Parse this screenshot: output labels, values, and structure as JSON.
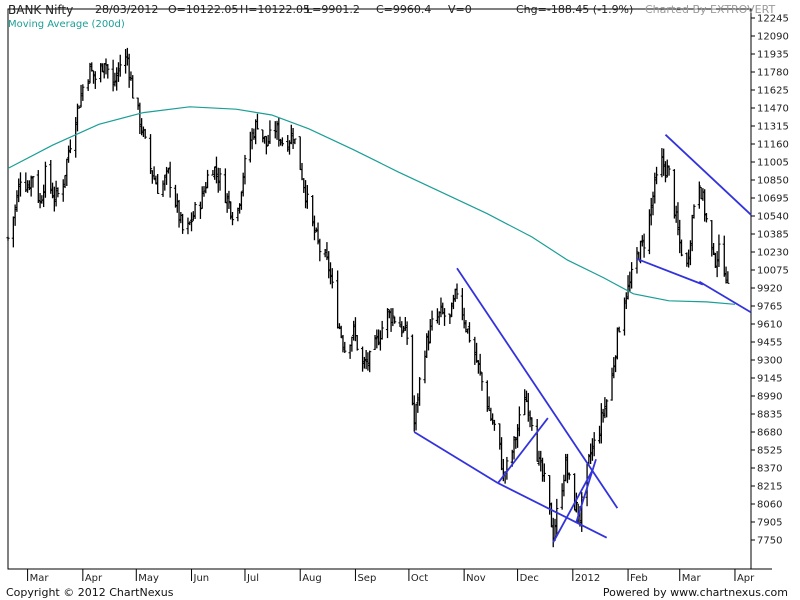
{
  "header": {
    "symbol": "BANK Nifty",
    "date": "28/03/2012",
    "open": "O=10122.05",
    "high": "H=10122.05",
    "low": "L=9901.2",
    "close": "C=9960.4",
    "volume": "V=0",
    "change": "Chg=-188.45 (-1.9%)",
    "charted_by": "Charted By EXTROVERT"
  },
  "ma_label": "Moving Average (200d)",
  "footer": {
    "copyright": "Copyright © 2012 ChartNexus",
    "powered": "Powered by www.chartnexus.com"
  },
  "colors": {
    "price": "#000000",
    "moving_average": "#1a9e96",
    "trendlines": "#3333dd",
    "axis": "#000000"
  },
  "chart_data": {
    "type": "ohlc-bar",
    "title": "BANK Nifty",
    "y_scale": "linear",
    "ylim": [
      7640,
      12330
    ],
    "y_ticks": [
      12245,
      12090,
      11935,
      11780,
      11625,
      11470,
      11315,
      11160,
      11005,
      10850,
      10695,
      10540,
      10385,
      10230,
      10075,
      9920,
      9765,
      9610,
      9455,
      9300,
      9145,
      8990,
      8835,
      8680,
      8525,
      8370,
      8215,
      8060,
      7905,
      7750
    ],
    "x_ticks": [
      "Mar",
      "Apr",
      "May",
      "Jun",
      "Jul",
      "Aug",
      "Sep",
      "Oct",
      "Nov",
      "Dec",
      "2012",
      "Feb",
      "Mar",
      "Apr"
    ],
    "x_tick_dates": [
      "2011-03-01",
      "2011-04-01",
      "2011-05-01",
      "2011-06-01",
      "2011-07-01",
      "2011-08-01",
      "2011-09-01",
      "2011-10-01",
      "2011-11-01",
      "2011-12-01",
      "2012-01-01",
      "2012-02-01",
      "2012-03-01",
      "2012-04-01"
    ],
    "x_range": [
      "2011-02-18",
      "2012-04-10"
    ],
    "grid": false,
    "price_path": [
      [
        "2011-02-18",
        10350
      ],
      [
        "2011-02-22",
        10600
      ],
      [
        "2011-02-25",
        10880
      ],
      [
        "2011-03-01",
        10800
      ],
      [
        "2011-03-04",
        10900
      ],
      [
        "2011-03-08",
        10650
      ],
      [
        "2011-03-11",
        10900
      ],
      [
        "2011-03-16",
        10700
      ],
      [
        "2011-03-20",
        10750
      ],
      [
        "2011-03-24",
        11100
      ],
      [
        "2011-03-28",
        11400
      ],
      [
        "2011-04-01",
        11650
      ],
      [
        "2011-04-05",
        11800
      ],
      [
        "2011-04-09",
        11700
      ],
      [
        "2011-04-13",
        11900
      ],
      [
        "2011-04-18",
        11650
      ],
      [
        "2011-04-22",
        11850
      ],
      [
        "2011-04-26",
        11900
      ],
      [
        "2011-04-29",
        11600
      ],
      [
        "2011-05-04",
        11300
      ],
      [
        "2011-05-09",
        10950
      ],
      [
        "2011-05-14",
        10750
      ],
      [
        "2011-05-19",
        10900
      ],
      [
        "2011-05-24",
        10600
      ],
      [
        "2011-05-28",
        10350
      ],
      [
        "2011-06-02",
        10550
      ],
      [
        "2011-06-07",
        10700
      ],
      [
        "2011-06-12",
        11000
      ],
      [
        "2011-06-17",
        10850
      ],
      [
        "2011-06-22",
        10650
      ],
      [
        "2011-06-26",
        10500
      ],
      [
        "2011-06-30",
        10900
      ],
      [
        "2011-07-04",
        11200
      ],
      [
        "2011-07-08",
        11350
      ],
      [
        "2011-07-13",
        11150
      ],
      [
        "2011-07-18",
        11300
      ],
      [
        "2011-07-23",
        11150
      ],
      [
        "2011-07-28",
        11250
      ],
      [
        "2011-08-02",
        10900
      ],
      [
        "2011-08-07",
        10500
      ],
      [
        "2011-08-12",
        10250
      ],
      [
        "2011-08-17",
        10100
      ],
      [
        "2011-08-22",
        9650
      ],
      [
        "2011-08-26",
        9400
      ],
      [
        "2011-08-31",
        9550
      ],
      [
        "2011-09-05",
        9250
      ],
      [
        "2011-09-09",
        9300
      ],
      [
        "2011-09-14",
        9500
      ],
      [
        "2011-09-19",
        9700
      ],
      [
        "2011-09-24",
        9650
      ],
      [
        "2011-09-30",
        9500
      ],
      [
        "2011-10-04",
        8750
      ],
      [
        "2011-10-09",
        9350
      ],
      [
        "2011-10-14",
        9600
      ],
      [
        "2011-10-19",
        9700
      ],
      [
        "2011-10-24",
        9650
      ],
      [
        "2011-10-28",
        9900
      ],
      [
        "2011-11-02",
        9600
      ],
      [
        "2011-11-07",
        9350
      ],
      [
        "2011-11-12",
        9050
      ],
      [
        "2011-11-16",
        8800
      ],
      [
        "2011-11-20",
        8650
      ],
      [
        "2011-11-23",
        8300
      ],
      [
        "2011-11-27",
        8450
      ],
      [
        "2011-12-01",
        8700
      ],
      [
        "2011-12-05",
        9000
      ],
      [
        "2011-12-09",
        8800
      ],
      [
        "2011-12-13",
        8400
      ],
      [
        "2011-12-17",
        8200
      ],
      [
        "2011-12-21",
        7800
      ],
      [
        "2011-12-25",
        8150
      ],
      [
        "2011-12-28",
        8400
      ],
      [
        "2012-01-01",
        8100
      ],
      [
        "2012-01-05",
        7950
      ],
      [
        "2012-01-08",
        8250
      ],
      [
        "2012-01-11",
        8500
      ],
      [
        "2012-01-15",
        8650
      ],
      [
        "2012-01-18",
        8850
      ],
      [
        "2012-01-22",
        9050
      ],
      [
        "2012-01-25",
        9400
      ],
      [
        "2012-01-29",
        9800
      ],
      [
        "2012-02-02",
        9950
      ],
      [
        "2012-02-06",
        10200
      ],
      [
        "2012-02-11",
        10350
      ],
      [
        "2012-02-16",
        10800
      ],
      [
        "2012-02-20",
        11000
      ],
      [
        "2012-02-24",
        10900
      ],
      [
        "2012-02-27",
        10600
      ],
      [
        "2012-03-01",
        10300
      ],
      [
        "2012-03-05",
        10100
      ],
      [
        "2012-03-09",
        10650
      ],
      [
        "2012-03-12",
        10850
      ],
      [
        "2012-03-16",
        10500
      ],
      [
        "2012-03-20",
        10150
      ],
      [
        "2012-03-24",
        10250
      ],
      [
        "2012-03-28",
        9960
      ]
    ],
    "moving_average": {
      "name": "Moving Average (200d)",
      "points": [
        [
          "2011-02-18",
          10950
        ],
        [
          "2011-03-15",
          11150
        ],
        [
          "2011-04-10",
          11330
        ],
        [
          "2011-05-05",
          11430
        ],
        [
          "2011-05-31",
          11480
        ],
        [
          "2011-06-26",
          11460
        ],
        [
          "2011-07-16",
          11410
        ],
        [
          "2011-08-06",
          11290
        ],
        [
          "2011-08-31",
          11110
        ],
        [
          "2011-09-25",
          10920
        ],
        [
          "2011-10-20",
          10740
        ],
        [
          "2011-11-14",
          10560
        ],
        [
          "2011-12-09",
          10360
        ],
        [
          "2011-12-29",
          10160
        ],
        [
          "2012-01-18",
          10010
        ],
        [
          "2012-02-04",
          9870
        ],
        [
          "2012-02-24",
          9810
        ],
        [
          "2012-03-16",
          9800
        ],
        [
          "2012-04-01",
          9780
        ]
      ]
    },
    "trendlines": [
      {
        "from": [
          "2011-10-04",
          8680
        ],
        "to": [
          "2011-11-20",
          8240
        ]
      },
      {
        "from": [
          "2011-10-28",
          10090
        ],
        "to": [
          "2012-01-26",
          8025
        ]
      },
      {
        "from": [
          "2011-11-20",
          8240
        ],
        "to": [
          "2011-12-18",
          8800
        ]
      },
      {
        "from": [
          "2011-11-20",
          8240
        ],
        "to": [
          "2012-01-20",
          7770
        ]
      },
      {
        "from": [
          "2011-12-21",
          7730
        ],
        "to": [
          "2012-01-12",
          8350
        ]
      },
      {
        "from": [
          "2012-01-03",
          7905
        ],
        "to": [
          "2012-01-14",
          8445
        ]
      },
      {
        "from": [
          "2012-02-06",
          10170
        ],
        "to": [
          "2012-03-14",
          9950
        ]
      },
      {
        "from": [
          "2012-02-22",
          11240
        ],
        "to": [
          "2012-04-10",
          10550
        ]
      },
      {
        "from": [
          "2012-03-12",
          9975
        ],
        "to": [
          "2012-04-10",
          9710
        ]
      }
    ]
  }
}
